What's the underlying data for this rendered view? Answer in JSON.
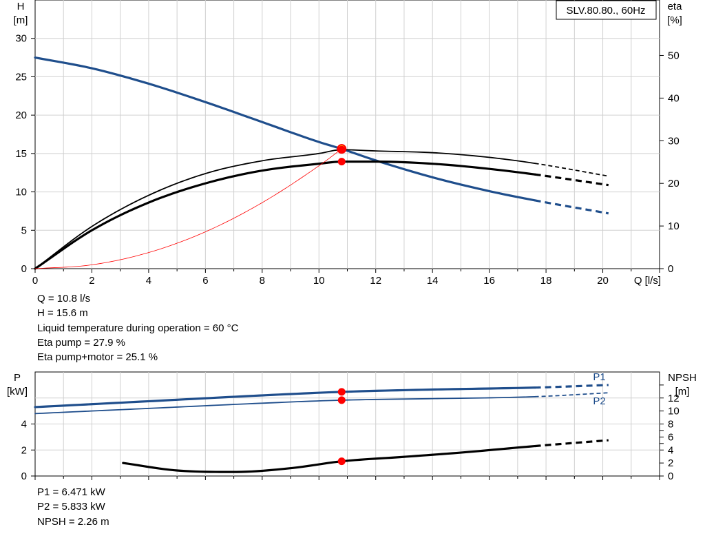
{
  "chart_data": [
    {
      "type": "line",
      "title": "SLV.80.80., 60Hz",
      "ylabel": "H",
      "yunit": "[m]",
      "y2label": "eta",
      "y2unit": "[%]",
      "xlabel": "Q [l/s]",
      "xlim": [
        0,
        22
      ],
      "ylim": [
        0,
        35
      ],
      "y2lim": [
        0,
        63
      ],
      "xticks": [
        0,
        2,
        4,
        6,
        8,
        10,
        12,
        14,
        16,
        18,
        20
      ],
      "yticks": [
        0,
        5,
        10,
        15,
        20,
        25,
        30
      ],
      "y2ticks": [
        0,
        10,
        20,
        30,
        40,
        50
      ],
      "grid": true,
      "series": [
        {
          "axis": "H",
          "color": "#1f4e8c",
          "solid_until": 17.6,
          "x": [
            0,
            2,
            4,
            6,
            8,
            10,
            10.8,
            12,
            14,
            16,
            17.6,
            20.2
          ],
          "values": [
            27.5,
            26.1,
            24.1,
            21.7,
            19.1,
            16.5,
            15.6,
            14.1,
            11.9,
            10.1,
            8.9,
            7.2
          ]
        },
        {
          "axis": "eta",
          "color": "#000000",
          "solid_until": 17.6,
          "x": [
            0,
            2,
            4,
            6,
            8,
            10,
            10.8,
            12,
            14,
            16,
            17.6,
            20.2
          ],
          "values": [
            0,
            9.9,
            17.2,
            22.3,
            25.3,
            27.0,
            27.9,
            27.6,
            27.2,
            26.1,
            24.7,
            21.7
          ]
        },
        {
          "axis": "eta",
          "color": "#000000",
          "solid_until": 17.6,
          "x": [
            0,
            2,
            4,
            6,
            8,
            10,
            10.8,
            12,
            14,
            16,
            17.6,
            20.2
          ],
          "values": [
            0,
            9.0,
            15.5,
            20.0,
            23.0,
            24.6,
            25.1,
            25.1,
            24.6,
            23.4,
            22.1,
            19.6
          ]
        },
        {
          "axis": "H",
          "color": "#ff0000",
          "thin": true,
          "x": [
            0,
            2,
            4,
            6,
            8,
            10,
            10.8
          ],
          "values": [
            0,
            0.5,
            2.1,
            4.8,
            8.6,
            13.4,
            15.6
          ]
        }
      ],
      "operating_points": [
        {
          "x": 10.8,
          "axis": "H",
          "value": 15.6,
          "highlight": true
        },
        {
          "x": 10.8,
          "axis": "eta",
          "value": 27.9
        },
        {
          "x": 10.8,
          "axis": "eta",
          "value": 25.1
        }
      ]
    },
    {
      "type": "line",
      "ylabel": "P",
      "yunit": "[kW]",
      "y2label": "NPSH",
      "y2unit": "[m]",
      "xlim": [
        0,
        22
      ],
      "ylim": [
        0,
        8
      ],
      "y2lim": [
        0,
        16
      ],
      "yticks": [
        0,
        2,
        4
      ],
      "y2ticks": [
        0,
        2,
        4,
        6,
        8,
        10,
        12
      ],
      "y2_extra_ticks": [
        5,
        7,
        14
      ],
      "grid": true,
      "series": [
        {
          "name": "P1",
          "axis": "P",
          "color": "#1f4e8c",
          "thick": true,
          "solid_until": 17.6,
          "x": [
            0,
            4,
            8,
            10.8,
            14,
            17.6,
            20.2
          ],
          "values": [
            5.3,
            5.75,
            6.2,
            6.47,
            6.65,
            6.8,
            7.0
          ]
        },
        {
          "name": "P2",
          "axis": "P",
          "color": "#1f4e8c",
          "solid_until": 17.6,
          "x": [
            0,
            4,
            8,
            10.8,
            14,
            17.6,
            20.2
          ],
          "values": [
            4.8,
            5.2,
            5.6,
            5.833,
            5.95,
            6.1,
            6.4
          ]
        },
        {
          "axis": "NPSH",
          "color": "#000000",
          "thick": true,
          "solid_until": 17.6,
          "x": [
            3.1,
            5,
            7,
            9,
            10.8,
            13,
            15,
            17.6,
            20.2
          ],
          "values": [
            2.0,
            0.85,
            0.62,
            1.2,
            2.26,
            2.95,
            3.6,
            4.6,
            5.5
          ]
        }
      ],
      "operating_points": [
        {
          "x": 10.8,
          "axis": "P",
          "value": 6.471
        },
        {
          "x": 10.8,
          "axis": "P",
          "value": 5.833
        },
        {
          "x": 10.8,
          "axis": "NPSH",
          "value": 2.26
        }
      ]
    }
  ],
  "info_upper": [
    "Q = 10.8 l/s",
    "H = 15.6 m",
    "Liquid temperature during operation = 60 °C",
    "Eta pump = 27.9 %",
    "Eta pump+motor = 25.1 %"
  ],
  "info_lower": [
    "P1 = 6.471 kW",
    "P2 = 5.833 kW",
    "NPSH = 2.26 m"
  ]
}
